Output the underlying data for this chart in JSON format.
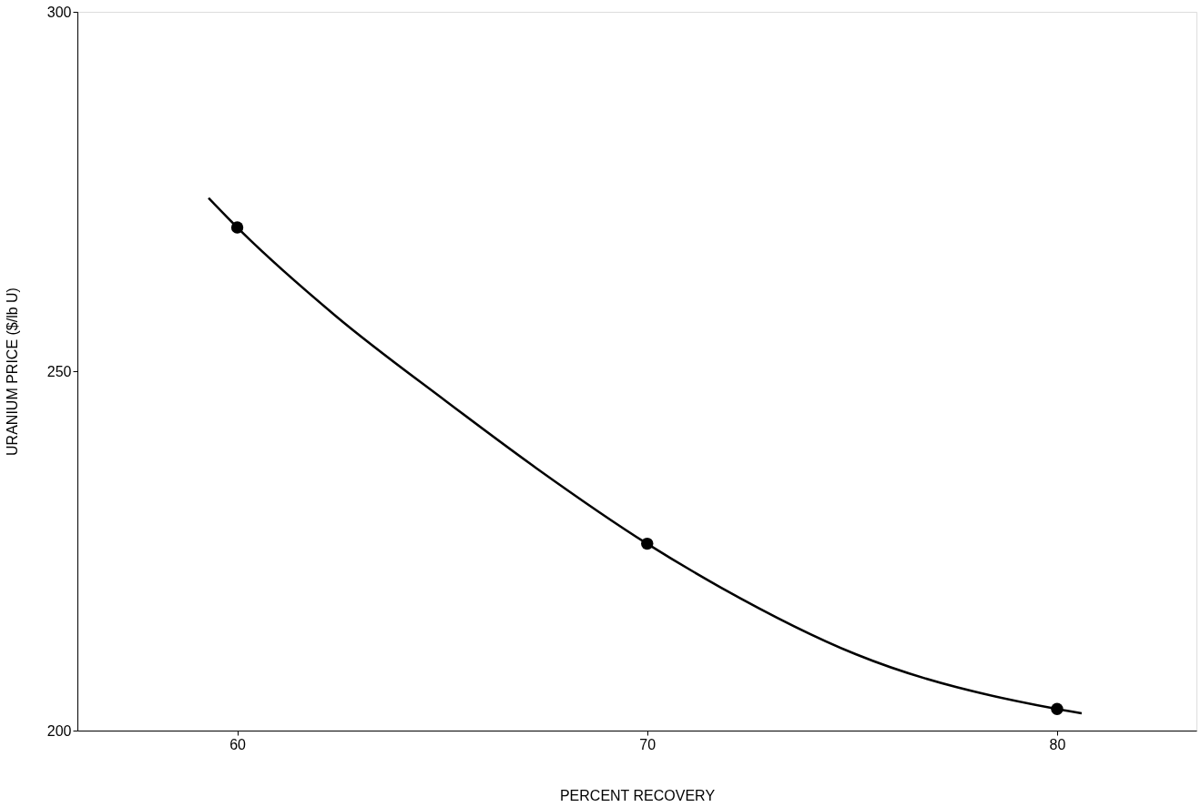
{
  "chart_data": {
    "type": "line",
    "xlabel": "PERCENT RECOVERY",
    "ylabel": "URANIUM PRICE ($/lb U)",
    "xlim": [
      56.1,
      83.4
    ],
    "xticks": [
      60,
      70,
      80
    ],
    "ylim": [
      200,
      300
    ],
    "yticks": [
      200,
      250,
      300
    ],
    "grid": false,
    "series": [
      {
        "color": "#000000",
        "marker": "none",
        "line_style": "solid",
        "x": [
          59.3,
          60,
          62.4,
          65.1,
          67.3,
          70,
          71.8,
          75.1,
          80,
          80.6
        ],
        "values": [
          274.1,
          270,
          257.7,
          245.8,
          236.5,
          226,
          219.9,
          210.6,
          203,
          202.4
        ]
      },
      {
        "type": "scatter",
        "color": "#000000",
        "marker": "circle",
        "x": [
          60,
          70,
          80
        ],
        "values": [
          270,
          226,
          203
        ]
      }
    ]
  }
}
